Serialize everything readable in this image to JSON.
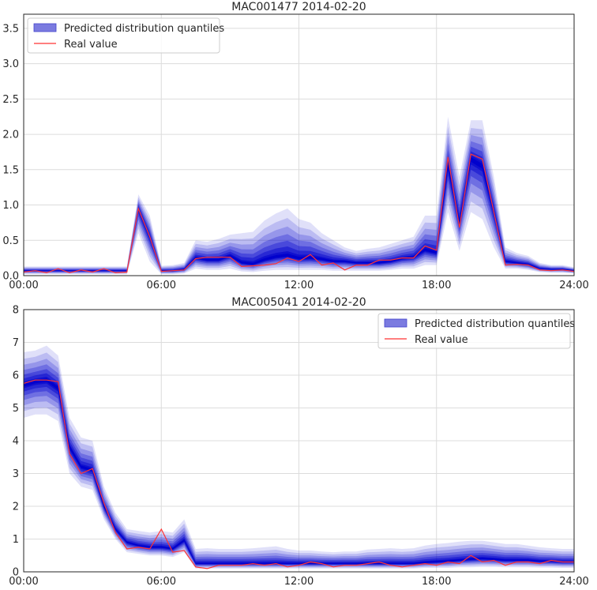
{
  "chart_data": [
    {
      "type": "area",
      "title": "MAC001477 2014-02-20",
      "xlabel": "",
      "ylabel": "",
      "x_tick_labels": [
        "00:00",
        "06:00",
        "12:00",
        "18:00",
        "24:00"
      ],
      "xlim": [
        0,
        24
      ],
      "ylim": [
        0,
        3.7
      ],
      "y_ticks": [
        0.0,
        0.5,
        1.0,
        1.5,
        2.0,
        2.5,
        3.0,
        3.5
      ],
      "y_tick_labels": [
        "0.0",
        "0.5",
        "1.0",
        "1.5",
        "2.0",
        "2.5",
        "3.0",
        "3.5"
      ],
      "grid": true,
      "legend_position": "top-left",
      "legend": [
        "Predicted distribution quantiles",
        "Real value"
      ],
      "colors": {
        "band": "#0000cc",
        "real": "#ff3333",
        "legend_band": "#7b7be0",
        "grid": "#dcdcdc"
      },
      "x": [
        0,
        0.5,
        1,
        1.5,
        2,
        2.5,
        3,
        3.5,
        4,
        4.5,
        5,
        5.5,
        6,
        6.5,
        7,
        7.5,
        8,
        8.5,
        9,
        9.5,
        10,
        10.5,
        11,
        11.5,
        12,
        12.5,
        13,
        13.5,
        14,
        14.5,
        15,
        15.5,
        16,
        16.5,
        17,
        17.5,
        18,
        18.5,
        19,
        19.5,
        20,
        20.5,
        21,
        21.5,
        22,
        22.5,
        23,
        23.5,
        24
      ],
      "median": [
        0.07,
        0.07,
        0.07,
        0.07,
        0.07,
        0.07,
        0.07,
        0.07,
        0.07,
        0.07,
        0.95,
        0.55,
        0.07,
        0.07,
        0.09,
        0.25,
        0.22,
        0.22,
        0.28,
        0.18,
        0.16,
        0.22,
        0.26,
        0.28,
        0.24,
        0.25,
        0.23,
        0.2,
        0.2,
        0.18,
        0.18,
        0.18,
        0.2,
        0.24,
        0.26,
        0.36,
        0.32,
        1.55,
        0.75,
        1.65,
        1.55,
        0.9,
        0.2,
        0.18,
        0.16,
        0.1,
        0.09,
        0.09,
        0.07
      ],
      "lower_outer": [
        0.02,
        0.02,
        0.02,
        0.02,
        0.02,
        0.02,
        0.02,
        0.02,
        0.02,
        0.02,
        0.6,
        0.2,
        0.02,
        0.02,
        0.03,
        0.1,
        0.08,
        0.08,
        0.1,
        0.06,
        0.05,
        0.07,
        0.08,
        0.08,
        0.08,
        0.08,
        0.08,
        0.07,
        0.07,
        0.07,
        0.07,
        0.07,
        0.08,
        0.1,
        0.1,
        0.15,
        0.15,
        0.9,
        0.35,
        0.9,
        0.8,
        0.4,
        0.1,
        0.1,
        0.08,
        0.05,
        0.04,
        0.04,
        0.03
      ],
      "upper_outer": [
        0.13,
        0.13,
        0.13,
        0.13,
        0.13,
        0.13,
        0.13,
        0.13,
        0.13,
        0.13,
        1.15,
        0.85,
        0.14,
        0.15,
        0.18,
        0.5,
        0.48,
        0.52,
        0.58,
        0.6,
        0.62,
        0.78,
        0.88,
        0.95,
        0.8,
        0.75,
        0.6,
        0.5,
        0.4,
        0.35,
        0.38,
        0.4,
        0.45,
        0.5,
        0.55,
        0.85,
        0.85,
        2.25,
        1.4,
        2.2,
        2.2,
        1.4,
        0.4,
        0.32,
        0.28,
        0.18,
        0.15,
        0.15,
        0.12
      ],
      "real": [
        0.05,
        0.07,
        0.04,
        0.1,
        0.04,
        0.08,
        0.05,
        0.1,
        0.04,
        0.05,
        0.95,
        0.55,
        0.06,
        0.07,
        0.08,
        0.24,
        0.26,
        0.26,
        0.26,
        0.13,
        0.14,
        0.15,
        0.17,
        0.25,
        0.2,
        0.3,
        0.15,
        0.18,
        0.08,
        0.15,
        0.15,
        0.22,
        0.22,
        0.25,
        0.25,
        0.42,
        0.36,
        1.68,
        0.68,
        1.72,
        1.65,
        0.9,
        0.15,
        0.16,
        0.15,
        0.08,
        0.07,
        0.08,
        0.06
      ]
    },
    {
      "type": "area",
      "title": "MAC005041 2014-02-20",
      "xlabel": "",
      "ylabel": "",
      "x_tick_labels": [
        "00:00",
        "06:00",
        "12:00",
        "18:00",
        "24:00"
      ],
      "xlim": [
        0,
        24
      ],
      "ylim": [
        0,
        8
      ],
      "y_ticks": [
        0,
        1,
        2,
        3,
        4,
        5,
        6,
        7,
        8
      ],
      "y_tick_labels": [
        "0",
        "1",
        "2",
        "3",
        "4",
        "5",
        "6",
        "7",
        "8"
      ],
      "grid": true,
      "legend_position": "top-right",
      "legend": [
        "Predicted distribution quantiles",
        "Real value"
      ],
      "colors": {
        "band": "#0000cc",
        "real": "#ff3333",
        "legend_band": "#7b7be0",
        "grid": "#dcdcdc"
      },
      "x": [
        0,
        0.5,
        1,
        1.5,
        2,
        2.5,
        3,
        3.5,
        4,
        4.5,
        5,
        5.5,
        6,
        6.5,
        7,
        7.5,
        8,
        8.5,
        9,
        9.5,
        10,
        10.5,
        11,
        11.5,
        12,
        12.5,
        13,
        13.5,
        14,
        14.5,
        15,
        15.5,
        16,
        16.5,
        17,
        17.5,
        18,
        18.5,
        19,
        19.5,
        20,
        20.5,
        21,
        21.5,
        22,
        22.5,
        23,
        23.5,
        24
      ],
      "median": [
        5.7,
        5.8,
        5.85,
        5.6,
        3.8,
        3.2,
        3.1,
        2.0,
        1.3,
        0.9,
        0.8,
        0.75,
        0.75,
        0.7,
        0.95,
        0.25,
        0.25,
        0.25,
        0.25,
        0.25,
        0.25,
        0.25,
        0.25,
        0.25,
        0.25,
        0.25,
        0.25,
        0.25,
        0.25,
        0.25,
        0.25,
        0.25,
        0.25,
        0.25,
        0.25,
        0.28,
        0.3,
        0.32,
        0.35,
        0.38,
        0.4,
        0.38,
        0.35,
        0.35,
        0.35,
        0.32,
        0.32,
        0.3,
        0.3
      ],
      "lower_outer": [
        4.7,
        4.8,
        4.8,
        4.6,
        3.0,
        2.6,
        2.5,
        1.6,
        1.0,
        0.6,
        0.55,
        0.5,
        0.5,
        0.45,
        0.6,
        0.1,
        0.1,
        0.1,
        0.1,
        0.1,
        0.1,
        0.1,
        0.1,
        0.1,
        0.1,
        0.1,
        0.1,
        0.1,
        0.1,
        0.1,
        0.1,
        0.1,
        0.1,
        0.1,
        0.1,
        0.12,
        0.12,
        0.12,
        0.14,
        0.14,
        0.15,
        0.15,
        0.14,
        0.14,
        0.14,
        0.13,
        0.13,
        0.12,
        0.12
      ],
      "upper_outer": [
        6.7,
        6.75,
        6.9,
        6.6,
        4.7,
        4.1,
        4.0,
        2.6,
        1.8,
        1.3,
        1.25,
        1.2,
        1.25,
        1.2,
        1.6,
        0.7,
        0.72,
        0.7,
        0.7,
        0.7,
        0.72,
        0.75,
        0.78,
        0.7,
        0.65,
        0.65,
        0.62,
        0.6,
        0.62,
        0.62,
        0.68,
        0.7,
        0.72,
        0.7,
        0.72,
        0.8,
        0.85,
        0.88,
        0.92,
        0.95,
        0.95,
        0.9,
        0.85,
        0.85,
        0.8,
        0.75,
        0.72,
        0.7,
        0.7
      ],
      "real": [
        5.75,
        5.85,
        5.85,
        5.8,
        3.6,
        3.0,
        3.15,
        2.1,
        1.2,
        0.7,
        0.75,
        0.7,
        1.3,
        0.6,
        0.65,
        0.15,
        0.1,
        0.2,
        0.2,
        0.2,
        0.25,
        0.2,
        0.25,
        0.15,
        0.2,
        0.3,
        0.25,
        0.15,
        0.2,
        0.2,
        0.25,
        0.3,
        0.2,
        0.15,
        0.2,
        0.25,
        0.2,
        0.3,
        0.25,
        0.5,
        0.3,
        0.35,
        0.2,
        0.3,
        0.3,
        0.25,
        0.35,
        0.3,
        0.3
      ]
    }
  ]
}
